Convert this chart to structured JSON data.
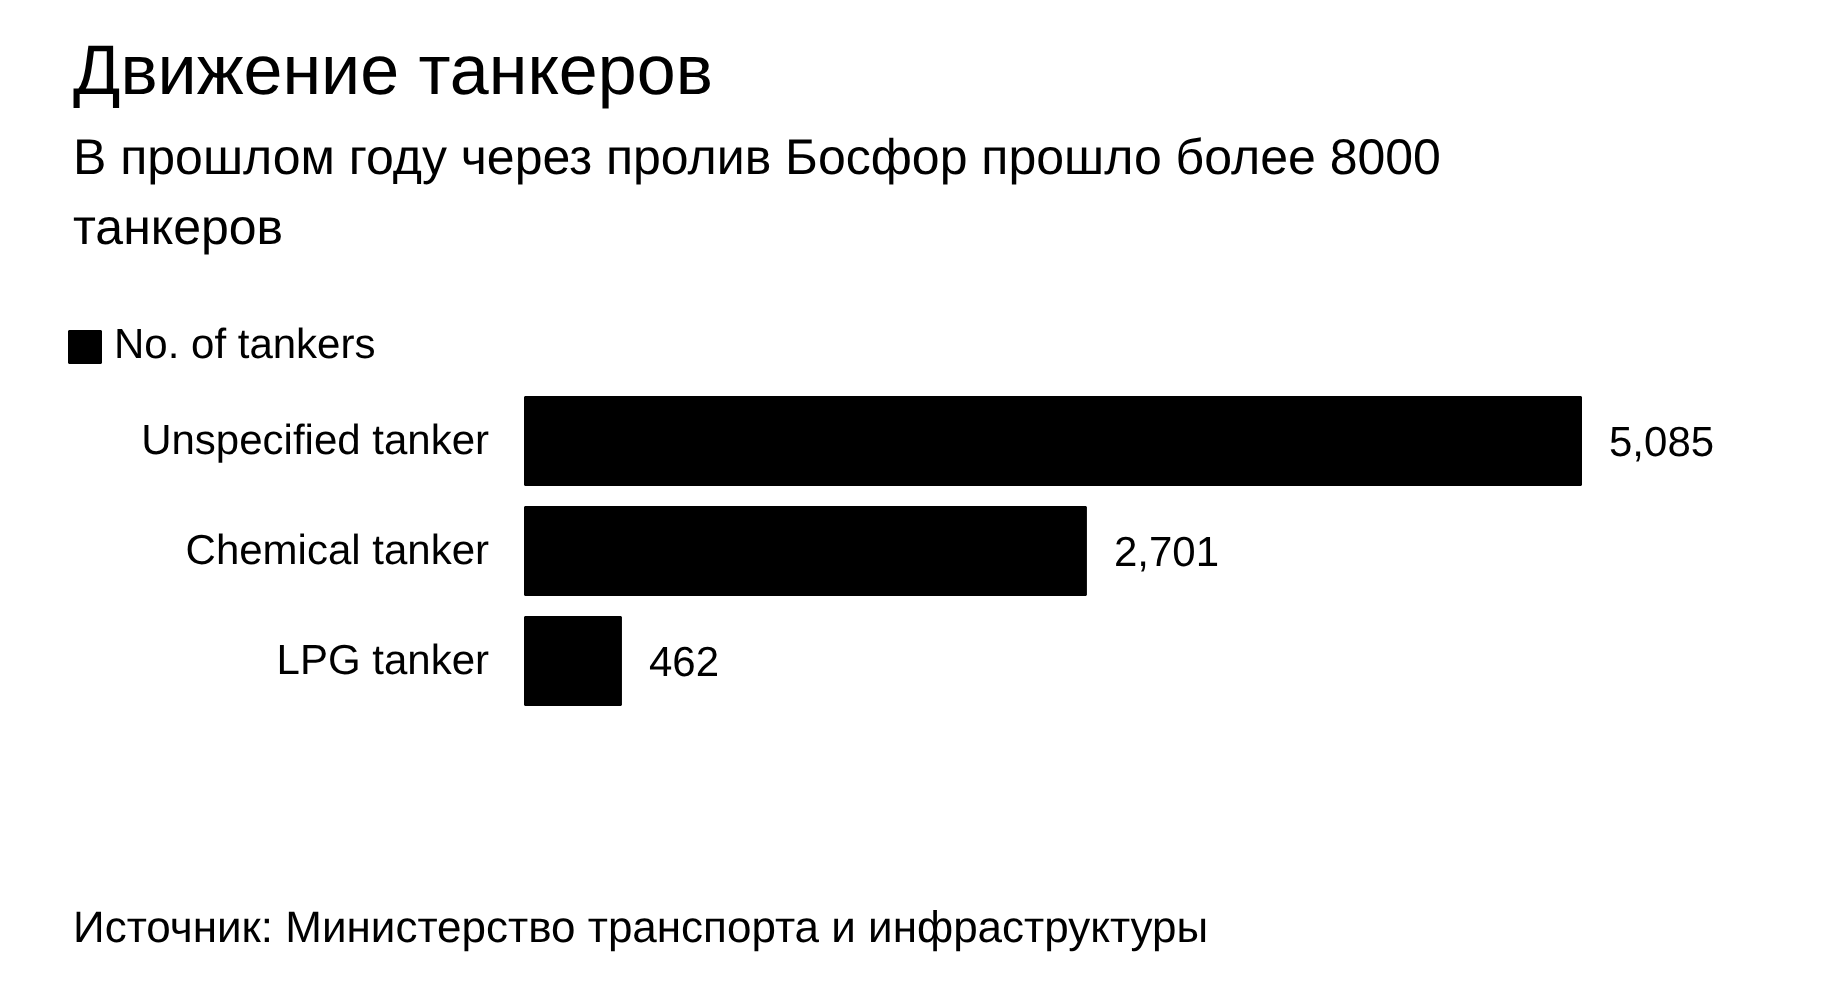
{
  "chart_data": {
    "type": "bar",
    "orientation": "horizontal",
    "title": "Движение танкеров",
    "subtitle": "В прошлом году через пролив Босфор прошло более 8000 танкеров",
    "categories": [
      "Unspecified tanker",
      "Chemical tanker",
      "LPG tanker"
    ],
    "series": [
      {
        "name": "No. of tankers",
        "color": "#000000",
        "values": [
          5085,
          2701,
          462
        ],
        "value_labels": [
          "5,085",
          "2,701",
          "462"
        ]
      }
    ],
    "legend": "top left",
    "grid": false,
    "annotations": [
      "Источник: Министерство транспорта и инфраструктуры"
    ]
  }
}
